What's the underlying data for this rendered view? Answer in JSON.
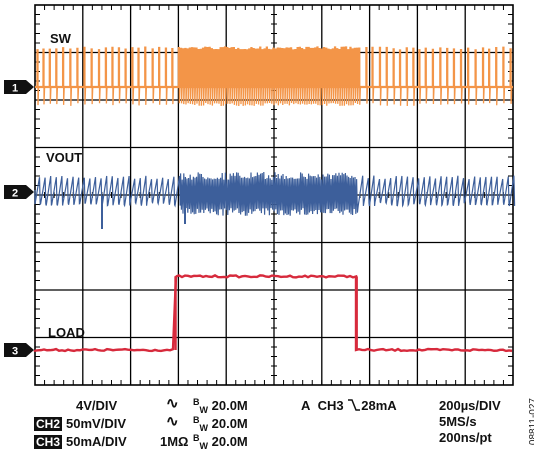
{
  "chart_data": {
    "type": "line",
    "grid": true,
    "divisions": {
      "x": 10,
      "y": 8
    },
    "time_axis": {
      "per_div": "200µs/DIV",
      "span_us": [
        0,
        2000
      ]
    },
    "load_step_us": [
      588,
      1346
    ],
    "series": [
      {
        "name": "SW",
        "channel": "1",
        "color": "#F39548",
        "scale": "4V/DIV",
        "coupling_icon": "∿",
        "bandwidth": "20.0M",
        "description_values": {
          "duty": "switching pulses"
        }
      },
      {
        "name": "VOUT",
        "channel": "2",
        "color": "#3D5F9B",
        "scale": "50mV/DIV",
        "coupling_icon": "∿",
        "bandwidth": "20.0M"
      },
      {
        "name": "LOAD",
        "channel": "3",
        "color": "#D72A3C",
        "scale": "50mA/DIV",
        "coupling_icon": "1MΩ",
        "bandwidth": "20.0M",
        "levels_div": {
          "low": 0,
          "high": 1.55
        }
      }
    ],
    "labels": {
      "sw": "SW",
      "vout": "VOUT",
      "load": "LOAD"
    },
    "markers": [
      "1",
      "2",
      "3"
    ]
  },
  "footer": {
    "ch1_scale": "4V/DIV",
    "ch1_bw": "20.0M",
    "ch2_badge": "CH2",
    "ch2_scale": "50mV/DIV",
    "ch2_bw": "20.0M",
    "ch3_badge": "CH3",
    "ch3_scale": "50mA/DIV",
    "ch3_impedance": "1MΩ",
    "ch3_bw": "20.0M",
    "bw_prefix": "B",
    "bw_sub": "W",
    "coupling_symbol": "∿",
    "trigger_mode": "A",
    "trigger_channel": "CH3",
    "trigger_level": "28mA",
    "timebase": "200µs/DIV",
    "sample_rate": "5MS/s",
    "resolution": "200ns/pt"
  },
  "figure_code": "08811-027"
}
